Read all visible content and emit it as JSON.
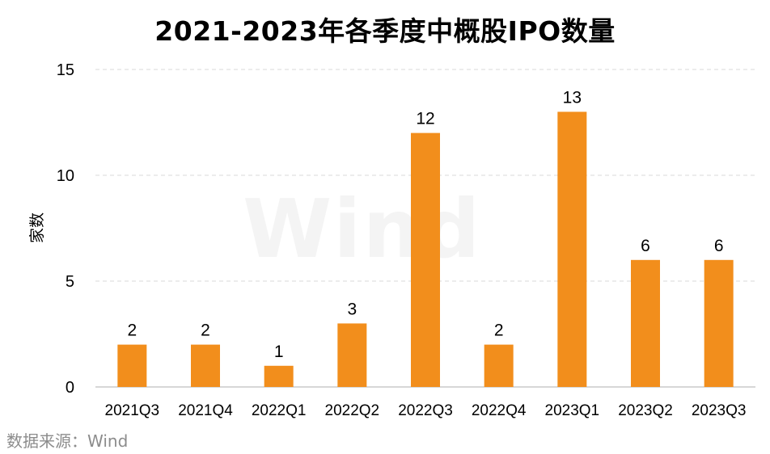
{
  "title": "2021-2023年各季度中概股IPO数量",
  "source": "数据来源：Wind",
  "watermark": "Wind",
  "colors": {
    "bar": "#f28e1c",
    "grid": "#d9d9d9",
    "axis": "#bfbfbf"
  },
  "chart_data": {
    "type": "bar",
    "title": "2021-2023年各季度中概股IPO数量",
    "xlabel": "",
    "ylabel": "家数",
    "categories": [
      "2021Q3",
      "2021Q4",
      "2022Q1",
      "2022Q2",
      "2022Q3",
      "2022Q4",
      "2023Q1",
      "2023Q2",
      "2023Q3"
    ],
    "values": [
      2,
      2,
      1,
      3,
      12,
      2,
      13,
      6,
      6
    ],
    "ylim": [
      0,
      15
    ],
    "yticks": [
      0,
      5,
      10,
      15
    ],
    "grid": true,
    "data_labels": true
  }
}
